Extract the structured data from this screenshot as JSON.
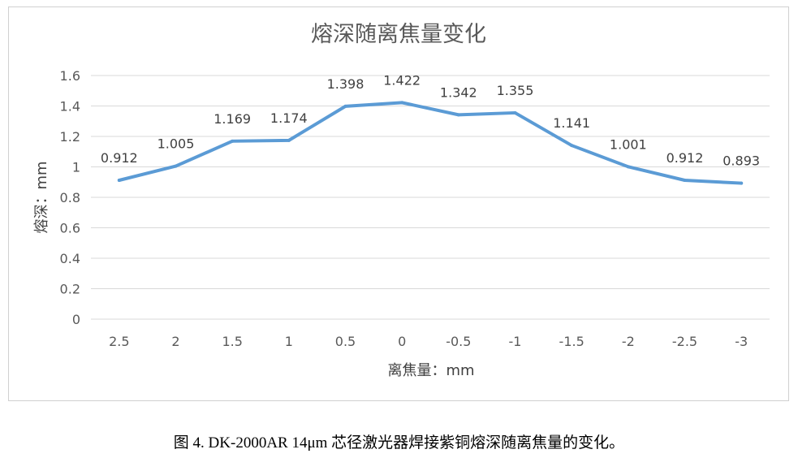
{
  "chart_data": {
    "type": "line",
    "title": "熔深随离焦量变化",
    "xlabel": "离焦量：mm",
    "ylabel": "熔深：mm",
    "categories": [
      "2.5",
      "2",
      "1.5",
      "1",
      "0.5",
      "0",
      "-0.5",
      "-1",
      "-1.5",
      "-2",
      "-2.5",
      "-3"
    ],
    "series": [
      {
        "values": [
          0.912,
          1.005,
          1.169,
          1.174,
          1.398,
          1.422,
          1.342,
          1.355,
          1.141,
          1.001,
          0.912,
          0.893
        ]
      }
    ],
    "data_labels": [
      "0.912",
      "1.005",
      "1.169",
      "1.174",
      "1.398",
      "1.422",
      "1.342",
      "1.355",
      "1.141",
      "1.001",
      "0.912",
      "0.893"
    ],
    "ylim": [
      0,
      1.6
    ],
    "yticks": [
      "0",
      "0.2",
      "0.4",
      "0.6",
      "0.8",
      "1",
      "1.2",
      "1.4",
      "1.6"
    ],
    "grid": true,
    "legend": "none",
    "line_color": "#5B9BD5"
  },
  "caption": "图 4. DK-2000AR 14μm 芯径激光器焊接紫铜熔深随离焦量的变化。"
}
